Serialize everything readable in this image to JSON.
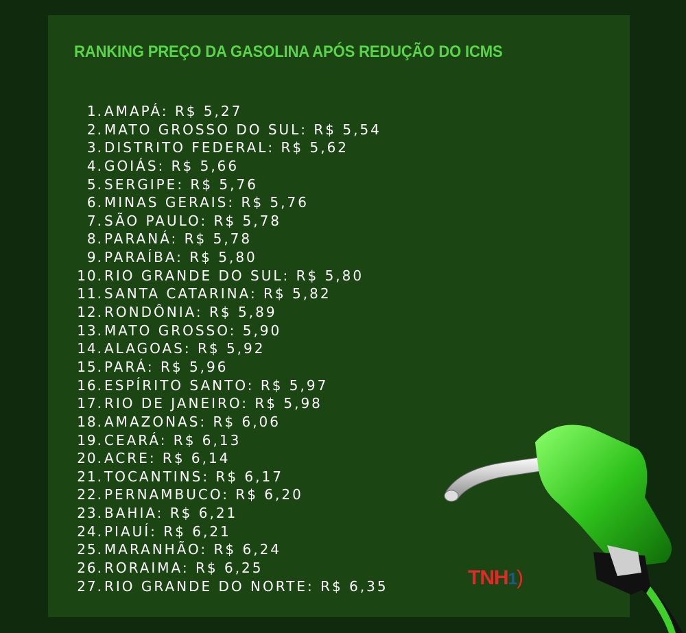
{
  "title": "RANKING PREÇO DA GASOLINA APÓS REDUÇÃO DO ICMS",
  "ranking": [
    {
      "rank": "1.",
      "text": "AMAPÁ: R$ 5,27"
    },
    {
      "rank": "2.",
      "text": "MATO GROSSO DO SUL: R$ 5,54"
    },
    {
      "rank": "3.",
      "text": "DISTRITO FEDERAL: R$ 5,62"
    },
    {
      "rank": "4.",
      "text": "GOIÁS: R$ 5,66"
    },
    {
      "rank": "5.",
      "text": "SERGIPE: R$ 5,76"
    },
    {
      "rank": "6.",
      "text": "MINAS GERAIS: R$ 5,76"
    },
    {
      "rank": "7.",
      "text": "SÃO PAULO: R$ 5,78"
    },
    {
      "rank": "8.",
      "text": "PARANÁ: R$ 5,78"
    },
    {
      "rank": "9.",
      "text": "PARAÍBA: R$ 5,80"
    },
    {
      "rank": "10.",
      "text": "RIO GRANDE DO SUL: R$ 5,80"
    },
    {
      "rank": "11.",
      "text": "SANTA CATARINA: R$ 5,82"
    },
    {
      "rank": "12.",
      "text": "RONDÔNIA: R$ 5,89"
    },
    {
      "rank": "13.",
      "text": "MATO GROSSO: 5,90"
    },
    {
      "rank": "14.",
      "text": "ALAGOAS: R$ 5,92"
    },
    {
      "rank": "15.",
      "text": "PARÁ: R$ 5,96"
    },
    {
      "rank": "16.",
      "text": "ESPÍRITO SANTO: R$ 5,97"
    },
    {
      "rank": "17.",
      "text": "RIO DE JANEIRO: R$ 5,98"
    },
    {
      "rank": "18.",
      "text": "AMAZONAS: R$ 6,06"
    },
    {
      "rank": "19.",
      "text": "CEARÁ: R$ 6,13"
    },
    {
      "rank": "20.",
      "text": "ACRE: R$ 6,14"
    },
    {
      "rank": "21.",
      "text": "TOCANTINS: R$ 6,17"
    },
    {
      "rank": "22.",
      "text": "PERNAMBUCO: R$ 6,20"
    },
    {
      "rank": "23.",
      "text": "BAHIA: R$ 6,21"
    },
    {
      "rank": "24.",
      "text": "PIAUÍ: R$ 6,21"
    },
    {
      "rank": "25.",
      "text": "MARANHÃO: R$ 6,24"
    },
    {
      "rank": "26.",
      "text": "RORAIMA: R$ 6,25"
    },
    {
      "rank": "27.",
      "text": "RIO GRANDE DO NORTE: R$ 6,35"
    }
  ],
  "logo": {
    "letters": "TNH",
    "digit": "1"
  },
  "colors": {
    "title": "#5ad448",
    "panel": "#1b4613",
    "background": "#0f2a0c",
    "logo_red": "#e02a2a",
    "logo_blue": "#1d5a8c"
  },
  "illustration": "green-fuel-nozzle-icon"
}
